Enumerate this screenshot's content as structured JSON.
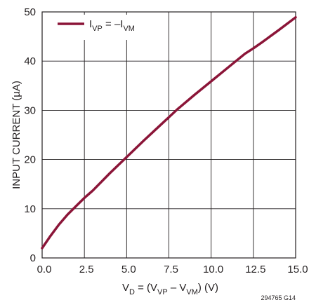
{
  "chart_data": {
    "type": "line",
    "xlabel": {
      "parts": [
        "V",
        "D",
        " = (V",
        "VP",
        " – V",
        "VM",
        ") (V)"
      ],
      "text": "VD = (VVP – VVM) (V)"
    },
    "ylabel": "INPUT CURRENT (µA)",
    "xlim": [
      0,
      15
    ],
    "ylim": [
      0,
      50
    ],
    "x_ticks": [
      "0.0",
      "2.5",
      "5.0",
      "7.5",
      "10.0",
      "12.5",
      "15.0"
    ],
    "y_ticks": [
      "0",
      "10",
      "20",
      "30",
      "40",
      "50"
    ],
    "grid": true,
    "legend_position": "top-left",
    "series": [
      {
        "name": "IVP = –IVM",
        "legend_parts": [
          "I",
          "VP",
          " = –I",
          "VM"
        ],
        "color": "#8b1538",
        "x": [
          0,
          0.5,
          1,
          1.5,
          2,
          2.5,
          3,
          4,
          5,
          6,
          7,
          7.5,
          8,
          9,
          10,
          11,
          12,
          12.5,
          13,
          14,
          15
        ],
        "y": [
          2,
          4.5,
          6.8,
          8.8,
          10.5,
          12.2,
          13.7,
          17.2,
          20.5,
          23.8,
          27,
          28.6,
          30.2,
          33.1,
          35.9,
          38.7,
          41.5,
          42.6,
          43.8,
          46.3,
          48.9
        ]
      }
    ]
  },
  "figure_id": "294765 G14",
  "colors": {
    "curve": "#8b1538",
    "grid": "#231f20",
    "text": "#231f20"
  }
}
